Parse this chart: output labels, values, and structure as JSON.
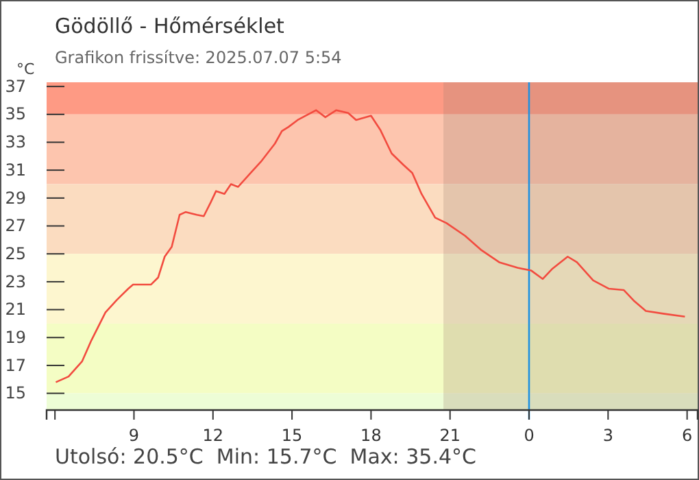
{
  "chart_data": {
    "type": "line",
    "title": "Gödöllő - Hőmérséklet",
    "subtitle": "Grafikon frissítve: 2025.07.07 5:54",
    "ylabel": "°C",
    "annotations": [
      "Utolsó: 20.5°C  Min: 15.7°C  Max: 35.4°C"
    ],
    "xlim": [
      "2025-07-06T05:41",
      "2025-07-07T06:24"
    ],
    "xticks": [
      {
        "value": "2025-07-06T06:00",
        "label": null
      },
      {
        "value": "2025-07-06T09:00",
        "label": "9"
      },
      {
        "value": "2025-07-06T12:00",
        "label": "12"
      },
      {
        "value": "2025-07-06T15:00",
        "label": "15"
      },
      {
        "value": "2025-07-06T18:00",
        "label": "18"
      },
      {
        "value": "2025-07-06T21:00",
        "label": "21"
      },
      {
        "value": "2025-07-07T00:00",
        "label": "0"
      },
      {
        "value": "2025-07-07T03:00",
        "label": "3"
      },
      {
        "value": "2025-07-07T06:00",
        "label": "6"
      }
    ],
    "ylim": [
      13.8,
      37.3
    ],
    "yticks": [
      15,
      17,
      19,
      21,
      23,
      25,
      27,
      29,
      31,
      33,
      35,
      37
    ],
    "series": [
      {
        "color": "#f24b3f",
        "x": [
          "2025-07-06T06:02",
          "2025-07-06T06:31",
          "2025-07-06T07:02",
          "2025-07-06T07:23",
          "2025-07-06T07:55",
          "2025-07-06T08:21",
          "2025-07-06T08:47",
          "2025-07-06T08:58",
          "2025-07-06T09:39",
          "2025-07-06T09:55",
          "2025-07-06T10:10",
          "2025-07-06T10:26",
          "2025-07-06T10:44",
          "2025-07-06T10:58",
          "2025-07-06T11:23",
          "2025-07-06T11:39",
          "2025-07-06T11:55",
          "2025-07-06T12:07",
          "2025-07-06T12:26",
          "2025-07-06T12:41",
          "2025-07-06T12:57",
          "2025-07-06T13:23",
          "2025-07-06T13:49",
          "2025-07-06T14:21",
          "2025-07-06T14:37",
          "2025-07-06T14:52",
          "2025-07-06T15:13",
          "2025-07-06T15:55",
          "2025-07-06T16:16",
          "2025-07-06T16:41",
          "2025-07-06T17:08",
          "2025-07-06T17:26",
          "2025-07-06T18:00",
          "2025-07-06T18:21",
          "2025-07-06T18:47",
          "2025-07-06T19:13",
          "2025-07-06T19:34",
          "2025-07-06T19:55",
          "2025-07-06T20:26",
          "2025-07-06T20:52",
          "2025-07-06T21:34",
          "2025-07-06T22:10",
          "2025-07-06T22:52",
          "2025-07-06T23:34",
          "2025-07-07T00:05",
          "2025-07-07T00:31",
          "2025-07-07T00:52",
          "2025-07-07T01:28",
          "2025-07-07T01:49",
          "2025-07-07T02:26",
          "2025-07-07T03:02",
          "2025-07-07T03:36",
          "2025-07-07T04:00",
          "2025-07-07T04:26",
          "2025-07-07T05:08",
          "2025-07-07T05:55"
        ],
        "values": [
          15.8,
          16.2,
          17.3,
          18.8,
          20.8,
          21.7,
          22.5,
          22.8,
          22.8,
          23.3,
          24.8,
          25.5,
          27.8,
          28.0,
          27.8,
          27.7,
          28.7,
          29.5,
          29.3,
          30.0,
          29.8,
          30.7,
          31.6,
          32.9,
          33.8,
          34.1,
          34.6,
          35.3,
          34.8,
          35.3,
          35.1,
          34.6,
          34.9,
          33.9,
          32.2,
          31.4,
          30.8,
          29.3,
          27.6,
          27.2,
          26.3,
          25.3,
          24.4,
          24.0,
          23.8,
          23.2,
          23.9,
          24.8,
          24.4,
          23.1,
          22.5,
          22.4,
          21.6,
          20.9,
          20.7,
          20.5
        ]
      }
    ],
    "bands": [
      {
        "axis": "y",
        "from": 35,
        "to": 37.3,
        "color": "#fe9a84"
      },
      {
        "axis": "y",
        "from": 30,
        "to": 35,
        "color": "#fdc5ae"
      },
      {
        "axis": "y",
        "from": 25,
        "to": 30,
        "color": "#fbdcc0"
      },
      {
        "axis": "y",
        "from": 20,
        "to": 25,
        "color": "#fdf6cf"
      },
      {
        "axis": "y",
        "from": 15,
        "to": 20,
        "color": "#f4fdc4"
      },
      {
        "axis": "y",
        "from": 13.8,
        "to": 15,
        "color": "#edfdd6"
      },
      {
        "axis": "x",
        "from": "2025-07-06T20:45",
        "to": "2025-07-07T06:24",
        "color": "#a08070"
      }
    ],
    "ref_lines": [
      {
        "axis": "x",
        "value": "2025-07-07T00:00",
        "color": "#1e90e0"
      }
    ]
  }
}
